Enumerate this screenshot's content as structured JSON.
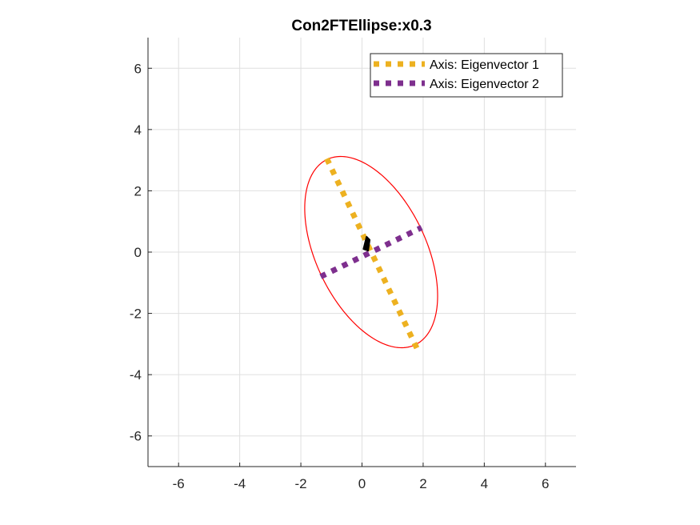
{
  "chart_data": {
    "type": "line",
    "title": "Con2FTEllipse:x0.3",
    "xlim": [
      -7,
      7
    ],
    "ylim": [
      -7,
      7
    ],
    "xticks": [
      -6,
      -4,
      -2,
      0,
      2,
      4,
      6
    ],
    "yticks": [
      -6,
      -4,
      -2,
      0,
      2,
      4,
      6
    ],
    "xtick_labels": [
      "-6",
      "-4",
      "-2",
      "0",
      "2",
      "4",
      "6"
    ],
    "ytick_labels": [
      "-6",
      "-4",
      "-2",
      "0",
      "2",
      "4",
      "6"
    ],
    "grid": true,
    "legend_placement": "top-right",
    "ellipse": {
      "center": [
        0.3,
        0.0
      ],
      "semi_major": 3.35,
      "semi_minor": 1.8,
      "major_axis_direction": [
        -0.43,
        0.9
      ],
      "color": "#ff0000"
    },
    "series": [
      {
        "name": "Axis: Eigenvector 1",
        "color": "#EDB120",
        "style": "dotted",
        "x": [
          -1.15,
          1.8
        ],
        "y": [
          3.05,
          -3.15
        ]
      },
      {
        "name": "Axis: Eigenvector 2",
        "color": "#7E2F8E",
        "style": "dotted",
        "x": [
          -1.35,
          1.95
        ],
        "y": [
          -0.8,
          0.8
        ]
      }
    ],
    "center_marker": {
      "x": [
        0.05,
        0.15,
        0.25,
        0.2
      ],
      "y": [
        0.1,
        0.5,
        0.4,
        0.05
      ],
      "color": "#000000"
    }
  }
}
